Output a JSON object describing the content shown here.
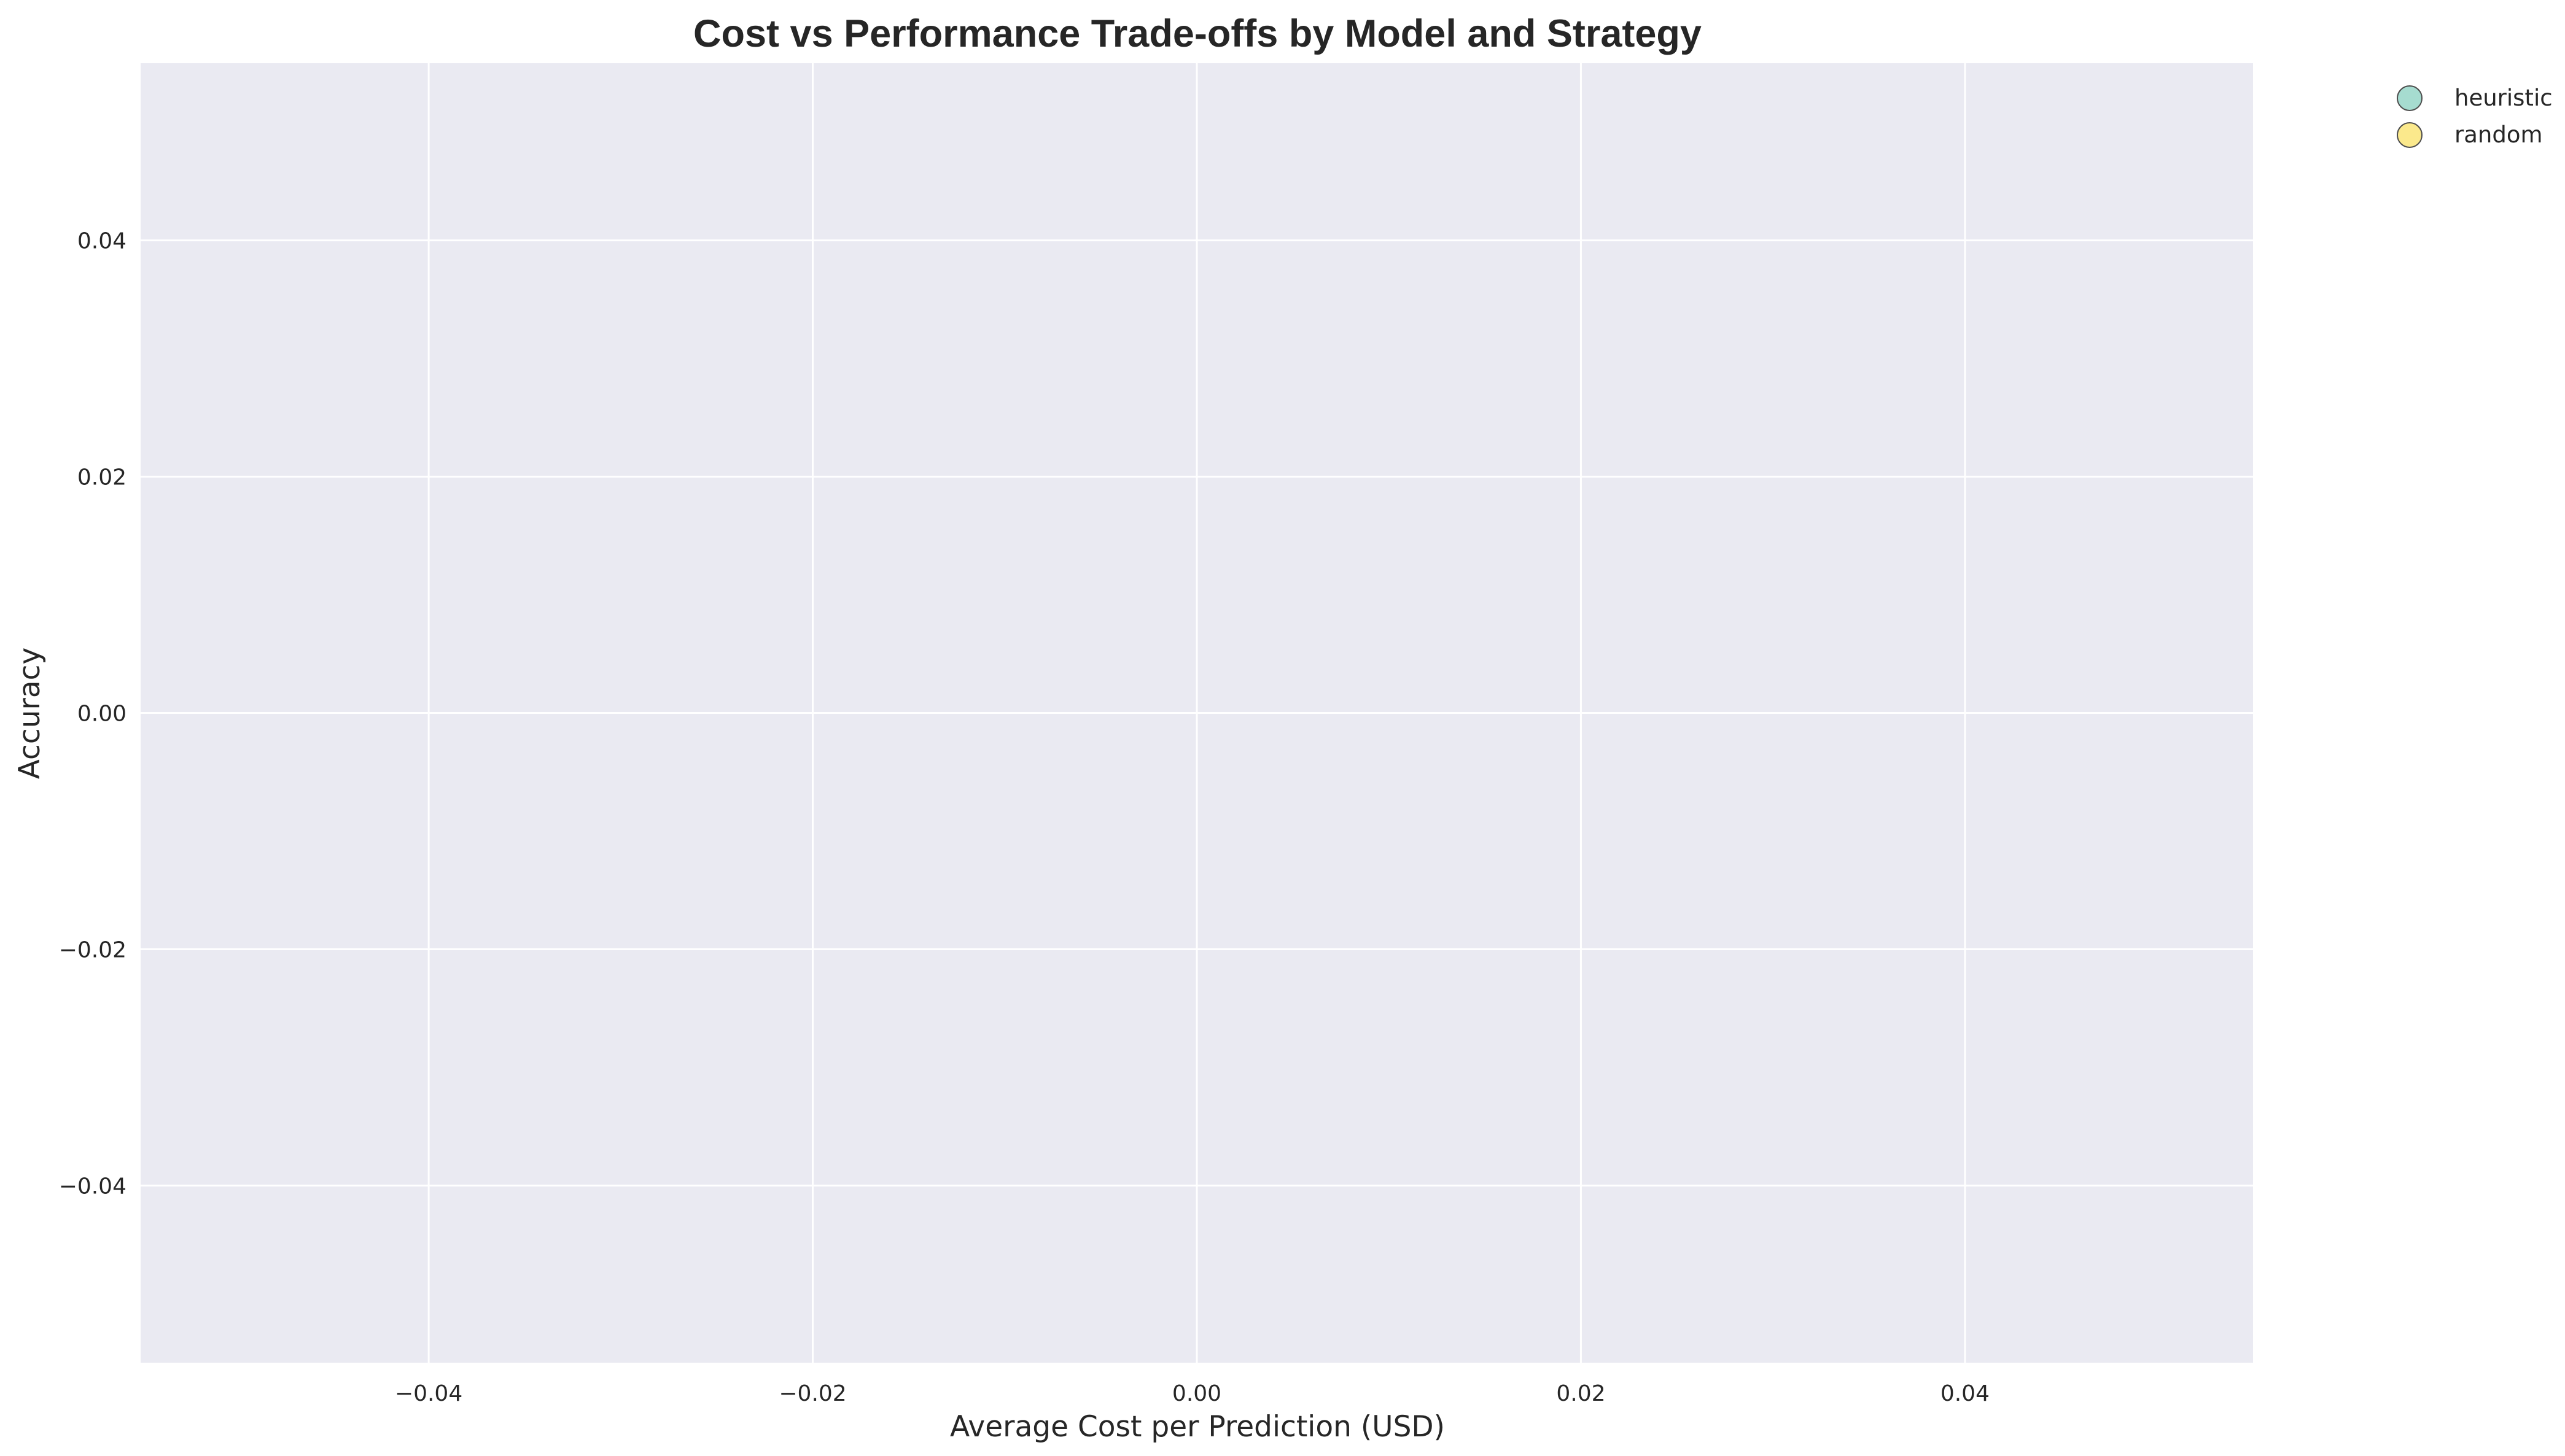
{
  "chart_data": {
    "type": "scatter",
    "title": "Cost vs Performance Trade-offs by Model and Strategy",
    "xlabel": "Average Cost per Prediction (USD)",
    "ylabel": "Accuracy",
    "xlim": [
      -0.055,
      0.055
    ],
    "ylim": [
      -0.055,
      0.055
    ],
    "x_ticks": [
      -0.04,
      -0.02,
      0.0,
      0.02,
      0.04
    ],
    "y_ticks": [
      -0.04,
      -0.02,
      0.0,
      0.02,
      0.04
    ],
    "x_tick_labels": [
      "−0.04",
      "−0.02",
      "0.00",
      "0.02",
      "0.04"
    ],
    "y_tick_labels": [
      "−0.04",
      "−0.02",
      "0.00",
      "0.02",
      "0.04"
    ],
    "grid": true,
    "legend_position": "outside top-right",
    "series": [
      {
        "name": "heuristic",
        "color": "#a6dcd0",
        "points": []
      },
      {
        "name": "random",
        "color": "#fbe98c",
        "points": []
      }
    ],
    "plot_background": "#eaeaf2",
    "grid_color": "#ffffff",
    "marker_edge_color": "#4d4d4d"
  }
}
